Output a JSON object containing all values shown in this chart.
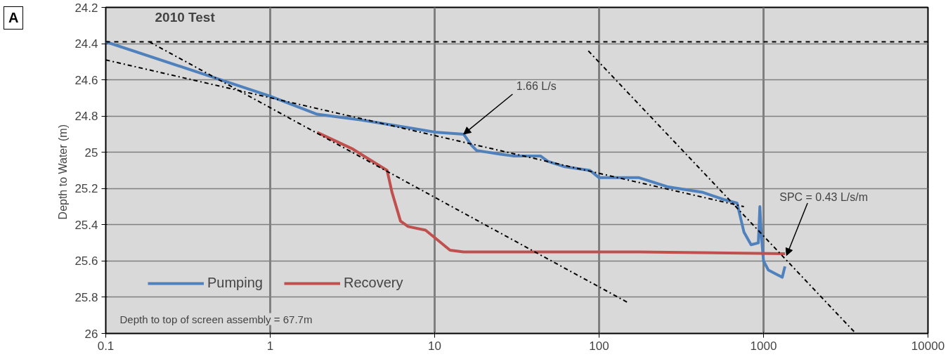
{
  "chart_data": {
    "type": "line",
    "title": "2010 Test",
    "ylabel": "Depth to Water  (m)",
    "log": "x",
    "xlim": [
      0.1,
      10000
    ],
    "xticks": [
      0.1,
      1,
      10,
      100,
      1000,
      10000
    ],
    "ylim": [
      26,
      24.2
    ],
    "yticks": [
      24.2,
      24.4,
      24.6,
      24.8,
      25,
      25.2,
      25.4,
      25.6,
      25.8,
      26
    ],
    "grid": true,
    "legend": "bottom left",
    "line_style": "solid",
    "marker": "none",
    "series": [
      {
        "name": "Pumping",
        "color": "#4f81bd",
        "x": [
          0.1,
          1,
          1.93,
          3.47,
          7.6,
          10.3,
          15,
          16.7,
          18,
          24.8,
          30,
          44,
          48.8,
          62,
          88,
          100,
          175,
          260,
          423,
          570,
          690,
          760,
          840,
          930,
          950,
          970,
          1000,
          1070,
          1180,
          1300,
          1350
        ],
        "values": [
          24.39,
          24.69,
          24.79,
          24.82,
          24.87,
          24.89,
          24.9,
          24.96,
          24.99,
          25.01,
          25.02,
          25.02,
          25.05,
          25.08,
          25.1,
          25.14,
          25.14,
          25.19,
          25.22,
          25.26,
          25.28,
          25.44,
          25.51,
          25.5,
          25.3,
          25.46,
          25.6,
          25.65,
          25.67,
          25.69,
          25.63
        ]
      },
      {
        "name": "Recovery",
        "color": "#c0504d",
        "x": [
          1.93,
          3.15,
          5.14,
          5.5,
          6.2,
          6.9,
          8.8,
          10.3,
          12.4,
          15,
          175,
          1350
        ],
        "values": [
          24.89,
          24.98,
          25.1,
          25.22,
          25.38,
          25.41,
          25.43,
          25.48,
          25.54,
          25.55,
          25.55,
          25.56
        ]
      },
      {
        "color": "#000000",
        "line_style": "dashdot",
        "x": [
          0.1,
          760
        ],
        "values": [
          24.49,
          25.3
        ]
      },
      {
        "color": "#000000",
        "line_style": "dashdot",
        "x": [
          0.184,
          150
        ],
        "values": [
          24.39,
          25.83
        ]
      },
      {
        "color": "#000000",
        "line_style": "dashdot",
        "x": [
          86,
          3640
        ],
        "values": [
          24.44,
          26
        ]
      }
    ],
    "ref_lines": [
      {
        "axis": "y",
        "value": 24.39,
        "color": "#000000",
        "line_style": "dashed"
      }
    ],
    "annotations": [
      "A",
      "Depth to top of screen assembly = 67.7m",
      {
        "text": "1.66 L/s",
        "x": 15,
        "y": 24.9
      },
      {
        "text": "SPC = 0.43 L/s/m",
        "x": 1380,
        "y": 25.57
      }
    ]
  }
}
